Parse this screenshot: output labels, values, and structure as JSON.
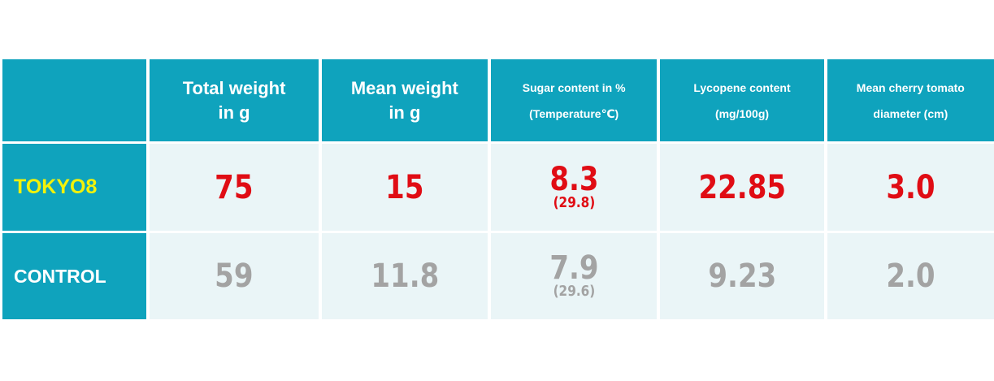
{
  "chart_data": {
    "type": "table",
    "columns": [
      "",
      "Total weight in g",
      "Mean weight in g",
      "Sugar content in % (Temperature℃)",
      "Lycopene content (mg/100g)",
      "Mean cherry tomato diameter (cm)"
    ],
    "header": {
      "total_weight": [
        "Total weight",
        "in g"
      ],
      "mean_weight": [
        "Mean weight",
        "in g"
      ],
      "sugar": [
        "Sugar content in %",
        "(Temperature℃)"
      ],
      "lycopene": [
        "Lycopene content",
        "(mg/100g)"
      ],
      "diameter": [
        "Mean cherry tomato",
        "diameter (cm)"
      ]
    },
    "rows": [
      {
        "label": "TOKYO8",
        "total_weight": "75",
        "mean_weight": "15",
        "sugar": "8.3",
        "temperature": "(29.8)",
        "lycopene": "22.85",
        "diameter": "3.0"
      },
      {
        "label": "CONTROL",
        "total_weight": "59",
        "mean_weight": "11.8",
        "sugar": "7.9",
        "temperature": "(29.6)",
        "lycopene": "9.23",
        "diameter": "2.0"
      }
    ],
    "colors": {
      "header_bg": "#0fa3bd",
      "cell_bg": "#eaf5f7",
      "tokyo_label": "#f2f20a",
      "tokyo_values": "#e00c14",
      "control_values": "#a3a3a3"
    }
  }
}
